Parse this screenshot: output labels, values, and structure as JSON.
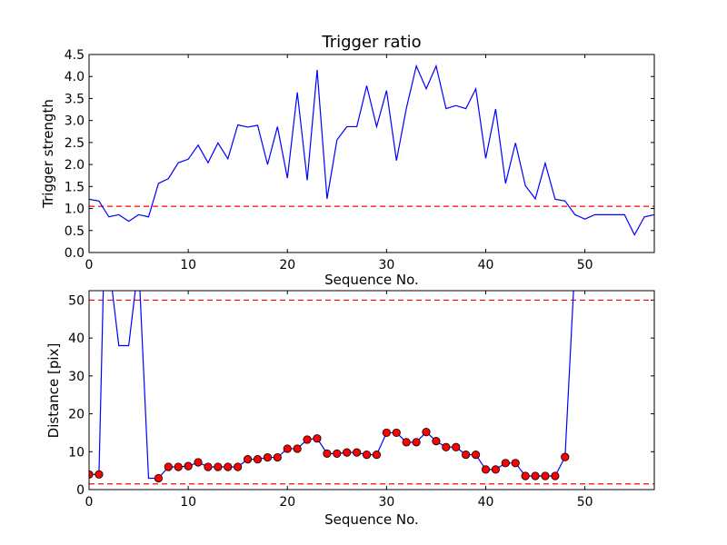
{
  "chart_data": [
    {
      "type": "line",
      "title": "Trigger ratio",
      "xlabel": "Sequence No.",
      "ylabel": "Trigger strength",
      "xlim": [
        0,
        57
      ],
      "ylim": [
        0,
        4.5
      ],
      "xticks": [
        0,
        10,
        20,
        30,
        40,
        50
      ],
      "yticks": [
        0.0,
        0.5,
        1.0,
        1.5,
        2.0,
        2.5,
        3.0,
        3.5,
        4.0,
        4.5
      ],
      "ytick_labels": [
        "0.0",
        "0.5",
        "1.0",
        "1.5",
        "2.0",
        "2.5",
        "3.0",
        "3.5",
        "4.0",
        "4.5"
      ],
      "line_color": "#0000ff",
      "threshold_color": "#ff0000",
      "thresholds": [
        1.05
      ],
      "series": [
        {
          "x": [
            0,
            1,
            2,
            3,
            4,
            5,
            6,
            7,
            8,
            9,
            10,
            11,
            12,
            13,
            14,
            15,
            16,
            17,
            18,
            19,
            20,
            21,
            22,
            23,
            24,
            25,
            26,
            27,
            28,
            29,
            30,
            31,
            32,
            33,
            34,
            35,
            36,
            37,
            38,
            39,
            40,
            41,
            42,
            43,
            44,
            45,
            46,
            47,
            48,
            49,
            50,
            51,
            52,
            53,
            54,
            55,
            56,
            57
          ],
          "values": [
            1.21,
            1.17,
            0.81,
            0.86,
            0.71,
            0.86,
            0.81,
            1.57,
            1.68,
            2.04,
            2.12,
            2.44,
            2.04,
            2.49,
            2.13,
            2.9,
            2.85,
            2.89,
            2.0,
            2.86,
            1.69,
            3.64,
            1.64,
            4.15,
            1.22,
            2.56,
            2.86,
            2.86,
            3.79,
            2.86,
            3.68,
            2.09,
            3.28,
            4.24,
            3.72,
            4.24,
            3.27,
            3.34,
            3.27,
            3.72,
            2.14,
            3.26,
            1.57,
            2.49,
            1.52,
            1.22,
            2.03,
            1.21,
            1.17,
            0.86,
            0.76,
            0.86,
            0.86,
            0.86,
            0.86,
            0.4,
            0.81,
            0.86
          ]
        }
      ]
    },
    {
      "type": "line",
      "title": "",
      "xlabel": "Sequence No.",
      "ylabel": "Distance [pix]",
      "xlim": [
        0,
        57
      ],
      "ylim": [
        0,
        52.5
      ],
      "xticks": [
        0,
        10,
        20,
        30,
        40,
        50
      ],
      "yticks": [
        0,
        10,
        20,
        30,
        40,
        50
      ],
      "ytick_labels": [
        "0",
        "10",
        "20",
        "30",
        "40",
        "50"
      ],
      "line_color": "#0000ff",
      "marker_color": "#ff0000",
      "threshold_color": "#ff0000",
      "thresholds": [
        1.5,
        50
      ],
      "series": [
        {
          "x": [
            0,
            1,
            1.5,
            2,
            3,
            4,
            5,
            6,
            7,
            8,
            9,
            10,
            11,
            12,
            13,
            14,
            15,
            16,
            17,
            18,
            19,
            20,
            21,
            22,
            23,
            24,
            25,
            26,
            27,
            28,
            29,
            30,
            31,
            32,
            33,
            34,
            35,
            36,
            37,
            38,
            39,
            40,
            41,
            42,
            43,
            44,
            45,
            46,
            47,
            48,
            49
          ],
          "values": [
            4.0,
            4.0,
            60,
            60,
            38,
            38,
            60,
            3.0,
            3.0,
            6.0,
            6.0,
            6.2,
            7.2,
            6.0,
            6.0,
            6.0,
            6.0,
            8.0,
            8.0,
            8.5,
            8.5,
            10.8,
            10.8,
            13.2,
            13.5,
            9.5,
            9.5,
            9.8,
            9.8,
            9.2,
            9.2,
            15.0,
            15.0,
            12.5,
            12.5,
            15.2,
            12.8,
            11.2,
            11.2,
            9.2,
            9.2,
            5.3,
            5.3,
            7.0,
            7.0,
            3.6,
            3.6,
            3.6,
            3.6,
            8.6,
            60
          ]
        },
        {
          "x": [
            0,
            1,
            7,
            8,
            9,
            10,
            11,
            12,
            13,
            14,
            15,
            16,
            17,
            18,
            19,
            20,
            21,
            22,
            23,
            24,
            25,
            26,
            27,
            28,
            29,
            30,
            31,
            32,
            33,
            34,
            35,
            36,
            37,
            38,
            39,
            40,
            41,
            42,
            43,
            44,
            45,
            46,
            47,
            48
          ],
          "values": [
            4.0,
            4.0,
            3.0,
            6.0,
            6.0,
            6.2,
            7.2,
            6.0,
            6.0,
            6.0,
            6.0,
            8.0,
            8.0,
            8.5,
            8.5,
            10.8,
            10.8,
            13.2,
            13.5,
            9.5,
            9.5,
            9.8,
            9.8,
            9.2,
            9.2,
            15.0,
            15.0,
            12.5,
            12.5,
            15.2,
            12.8,
            11.2,
            11.2,
            9.2,
            9.2,
            5.3,
            5.3,
            7.0,
            7.0,
            3.6,
            3.6,
            3.6,
            3.6,
            8.6
          ]
        }
      ]
    }
  ]
}
